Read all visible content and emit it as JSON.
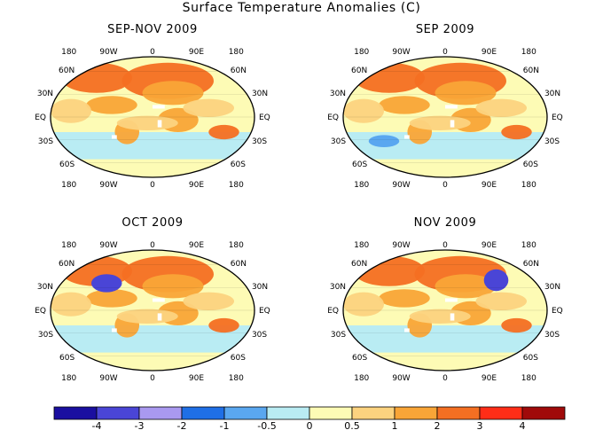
{
  "title": "Surface Temperature Anomalies (C)",
  "panels": [
    {
      "title": "SEP-NOV 2009"
    },
    {
      "title": "SEP 2009"
    },
    {
      "title": "OCT 2009"
    },
    {
      "title": "NOV 2009"
    }
  ],
  "lon_labels": [
    "180",
    "90W",
    "0",
    "90E",
    "180"
  ],
  "lat_labels": [
    "60N",
    "30N",
    "EQ",
    "30S",
    "60S"
  ],
  "colorbar": {
    "colors": [
      "#1a0fa0",
      "#4a45d6",
      "#a999f0",
      "#1f6fe6",
      "#5aa7f0",
      "#b9ecf3",
      "#fdfbb5",
      "#fcd37f",
      "#f9a537",
      "#f46f22",
      "#ff2d17",
      "#a00a0a"
    ],
    "labels": [
      "-4",
      "-3",
      "-2",
      "-1",
      "-0.5",
      "0",
      "0.5",
      "1",
      "2",
      "3",
      "4"
    ]
  },
  "legend_colors": {
    "missing": "#ffffff",
    "ocean_neutral": "#fdfbb5",
    "warm": "#f9a537",
    "cool": "#b9ecf3"
  }
}
